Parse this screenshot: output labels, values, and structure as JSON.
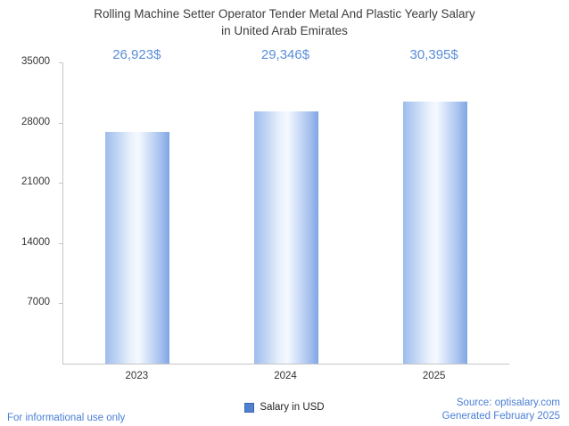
{
  "title": {
    "line1": "Rolling Machine Setter Operator Tender Metal And Plastic Yearly Salary",
    "line2": "in United Arab Emirates"
  },
  "chart_data": {
    "type": "bar",
    "categories": [
      "2023",
      "2024",
      "2025"
    ],
    "values": [
      26923,
      29346,
      30395
    ],
    "value_labels": [
      "26,923$",
      "29,346$",
      "30,395$"
    ],
    "ylim": [
      0,
      35000
    ],
    "yticks": [
      35000,
      28000,
      21000,
      14000,
      7000
    ],
    "grid": false,
    "legend_position": "bottom-center",
    "legend": [
      {
        "label": "Salary in USD",
        "color": "#4f81cf"
      }
    ],
    "bar_gradient": [
      "#9dbcec",
      "#f5f9ff",
      "#7fa6e3"
    ],
    "value_label_color": "#5b8dd9",
    "axis_color": "#c6c6c6"
  },
  "footer": {
    "left": "For informational use only",
    "source": "Source: optisalary.com",
    "generated": "Generated February 2025"
  }
}
